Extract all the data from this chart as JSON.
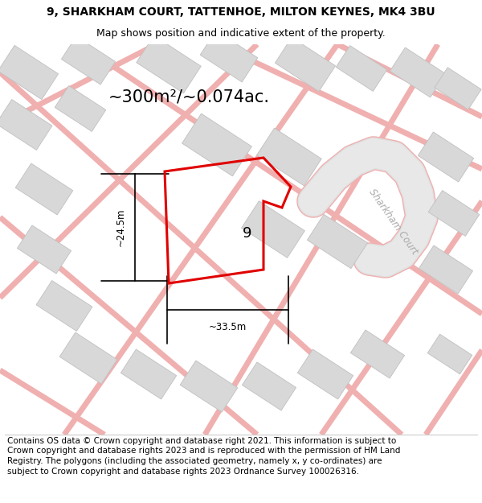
{
  "title_line1": "9, SHARKHAM COURT, TATTENHOE, MILTON KEYNES, MK4 3BU",
  "title_line2": "Map shows position and indicative extent of the property.",
  "area_text": "~300m²/~0.074ac.",
  "dim_width": "~33.5m",
  "dim_height": "~24.5m",
  "label_number": "9",
  "street_label": "Sharkham Court",
  "footer_text": "Contains OS data © Crown copyright and database right 2021. This information is subject to Crown copyright and database rights 2023 and is reproduced with the permission of HM Land Registry. The polygons (including the associated geometry, namely x, y co-ordinates) are subject to Crown copyright and database rights 2023 Ordnance Survey 100026316.",
  "bg_color": "#eeeeee",
  "building_color": "#d8d8d8",
  "building_outline": "#c0c0c0",
  "red_line_color": "#e00000",
  "pink_road_color": "#f0b0b0",
  "road_bg": "#e0e0e0",
  "sharkham_road_color": "#d8d8d8",
  "title_fontsize": 10,
  "subtitle_fontsize": 9,
  "area_fontsize": 16,
  "dim_fontsize": 9,
  "footer_fontsize": 7.5
}
